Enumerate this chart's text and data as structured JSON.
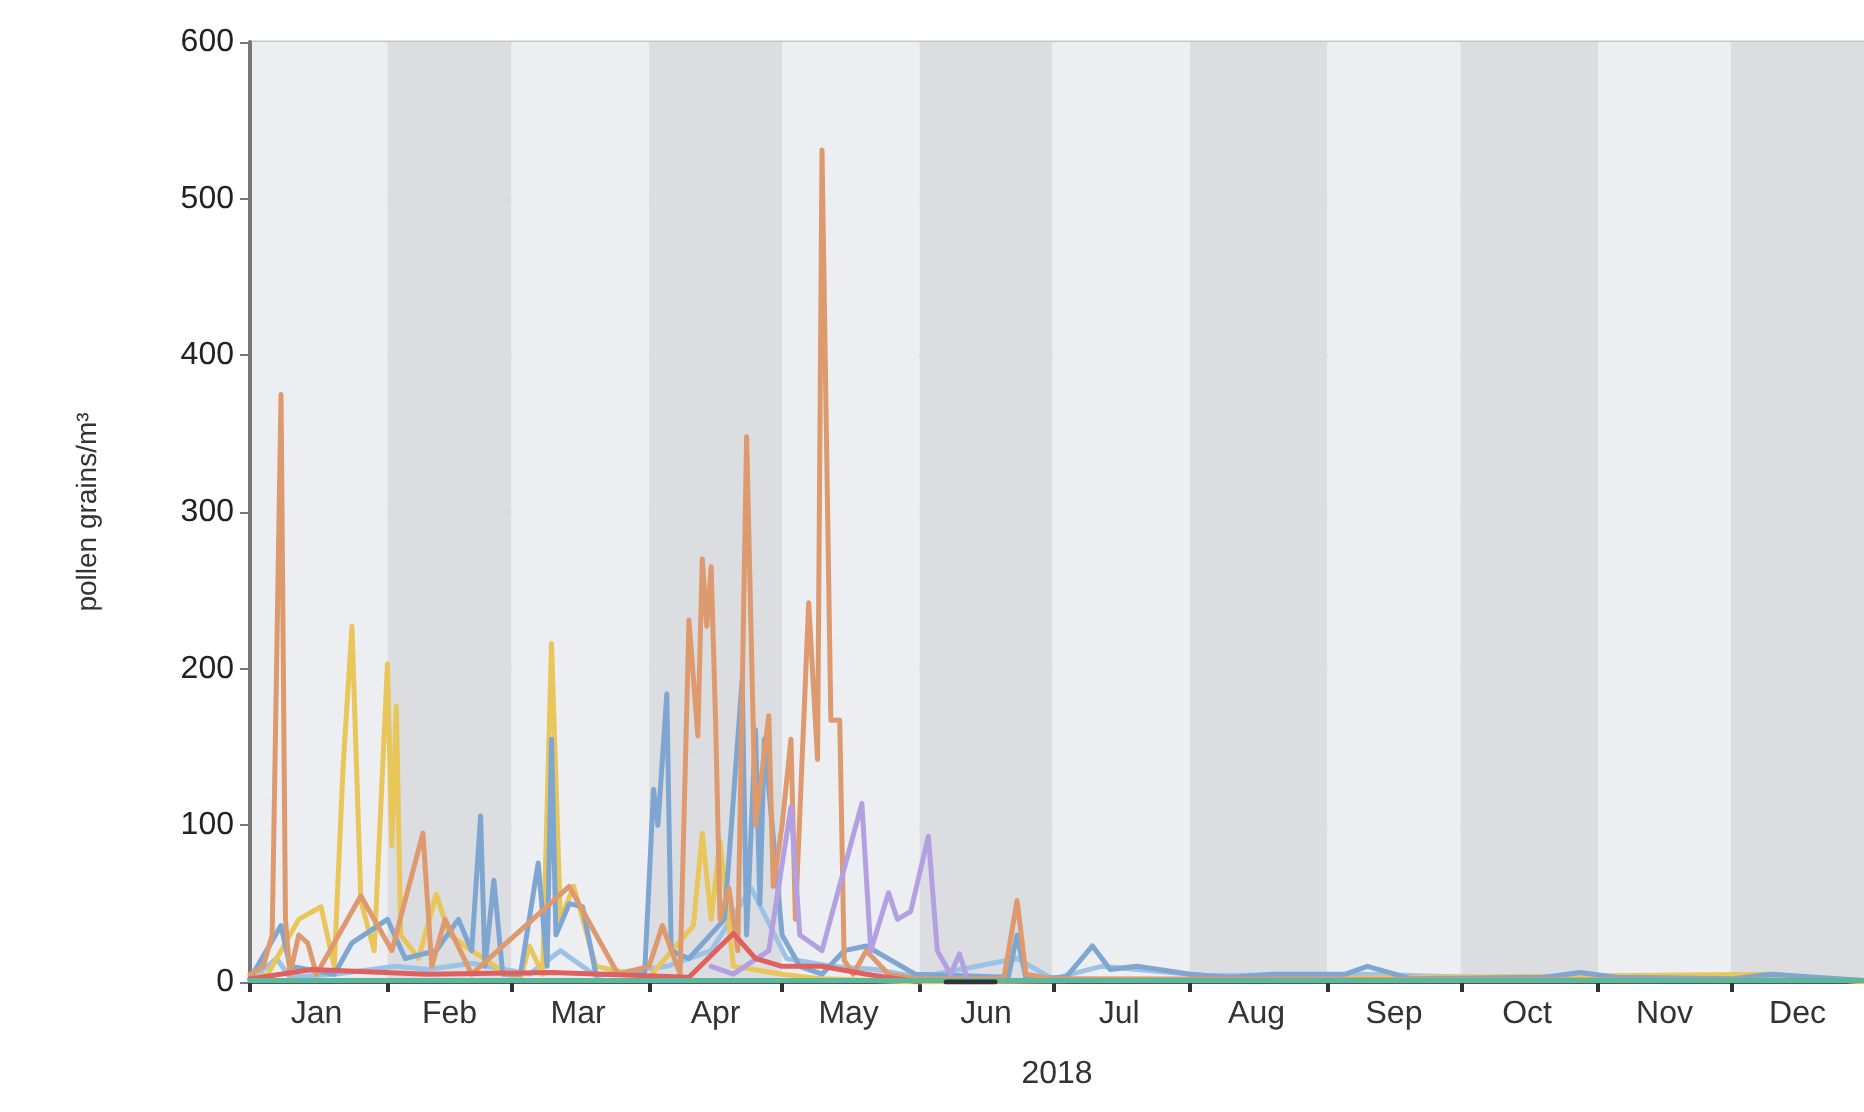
{
  "chart_data": {
    "type": "line",
    "xlabel": "2018",
    "ylabel": "pollen grains/m³",
    "xlim": [
      "2018-01-01",
      "2018-12-31"
    ],
    "ylim": [
      0,
      600
    ],
    "yticks": [
      0,
      100,
      200,
      300,
      400,
      500,
      600
    ],
    "xticks": [
      {
        "value": "2018-01-01",
        "label": null
      },
      {
        "value": "2018-01-16",
        "label": "Jan"
      },
      {
        "value": "2018-02-01",
        "label": null
      },
      {
        "value": "2018-02-15",
        "label": "Feb"
      },
      {
        "value": "2018-03-01",
        "label": null
      },
      {
        "value": "2018-03-16",
        "label": "Mar"
      },
      {
        "value": "2018-04-01",
        "label": null
      },
      {
        "value": "2018-04-16",
        "label": "Apr"
      },
      {
        "value": "2018-05-01",
        "label": null
      },
      {
        "value": "2018-05-16",
        "label": "May"
      },
      {
        "value": "2018-06-01",
        "label": null
      },
      {
        "value": "2018-06-16",
        "label": "Jun"
      },
      {
        "value": "2018-07-01",
        "label": null
      },
      {
        "value": "2018-07-16",
        "label": "Jul"
      },
      {
        "value": "2018-08-01",
        "label": null
      },
      {
        "value": "2018-08-16",
        "label": "Aug"
      },
      {
        "value": "2018-09-01",
        "label": null
      },
      {
        "value": "2018-09-16",
        "label": "Sep"
      },
      {
        "value": "2018-10-01",
        "label": null
      },
      {
        "value": "2018-10-16",
        "label": "Oct"
      },
      {
        "value": "2018-11-01",
        "label": null
      },
      {
        "value": "2018-11-16",
        "label": "Nov"
      },
      {
        "value": "2018-12-01",
        "label": null
      },
      {
        "value": "2018-12-16",
        "label": "Dec"
      }
    ],
    "grid": "y",
    "marker": "none",
    "line_style": "solid",
    "bands": [
      {
        "axis": "x",
        "from": "2018-01-01",
        "to": "2018-02-01",
        "color": "#eceef2"
      },
      {
        "axis": "x",
        "from": "2018-02-01",
        "to": "2018-03-01",
        "color": "#dcdde0"
      },
      {
        "axis": "x",
        "from": "2018-03-01",
        "to": "2018-04-01",
        "color": "#eceef2"
      },
      {
        "axis": "x",
        "from": "2018-04-01",
        "to": "2018-05-01",
        "color": "#dcdde0"
      },
      {
        "axis": "x",
        "from": "2018-05-01",
        "to": "2018-06-01",
        "color": "#eceef2"
      },
      {
        "axis": "x",
        "from": "2018-06-01",
        "to": "2018-07-01",
        "color": "#dcdde0"
      },
      {
        "axis": "x",
        "from": "2018-07-01",
        "to": "2018-08-01",
        "color": "#eceef2"
      },
      {
        "axis": "x",
        "from": "2018-08-01",
        "to": "2018-09-01",
        "color": "#dcdde0"
      },
      {
        "axis": "x",
        "from": "2018-09-01",
        "to": "2018-10-01",
        "color": "#eceef2"
      },
      {
        "axis": "x",
        "from": "2018-10-01",
        "to": "2018-11-01",
        "color": "#dcdde0"
      },
      {
        "axis": "x",
        "from": "2018-11-01",
        "to": "2018-12-01",
        "color": "#eceef2"
      },
      {
        "axis": "x",
        "from": "2018-12-01",
        "to": "2018-12-31",
        "color": "#dcdde0"
      }
    ],
    "series": [
      {
        "color": "#9cc3e5",
        "x": [
          "2018-01-01",
          "2018-01-07",
          "2018-01-10",
          "2018-01-20",
          "2018-02-03",
          "2018-02-10",
          "2018-02-20",
          "2018-03-05",
          "2018-03-12",
          "2018-03-20",
          "2018-04-05",
          "2018-04-15",
          "2018-04-24",
          "2018-05-02",
          "2018-05-12",
          "2018-05-22",
          "2018-06-01",
          "2018-06-23",
          "2018-07-01",
          "2018-07-12",
          "2018-08-05",
          "2018-09-10",
          "2018-10-15",
          "2018-11-10",
          "2018-12-10",
          "2018-12-31"
        ],
        "values": [
          1,
          15,
          3,
          5,
          10,
          8,
          12,
          5,
          20,
          4,
          10,
          20,
          60,
          15,
          10,
          8,
          3,
          15,
          2,
          10,
          4,
          5,
          2,
          3,
          4,
          1
        ]
      },
      {
        "color": "#e8c65a",
        "x": [
          "2018-01-01",
          "2018-01-05",
          "2018-01-12",
          "2018-01-17",
          "2018-01-20",
          "2018-01-22",
          "2018-01-24",
          "2018-01-26",
          "2018-01-29",
          "2018-02-01",
          "2018-02-02",
          "2018-02-03",
          "2018-02-04",
          "2018-02-08",
          "2018-02-12",
          "2018-02-15",
          "2018-02-20",
          "2018-02-28",
          "2018-03-03",
          "2018-03-05",
          "2018-03-08",
          "2018-03-10",
          "2018-03-12",
          "2018-03-15",
          "2018-03-20",
          "2018-04-01",
          "2018-04-11",
          "2018-04-13",
          "2018-04-15",
          "2018-04-17",
          "2018-04-20",
          "2018-05-01",
          "2018-05-10",
          "2018-06-01",
          "2018-12-10",
          "2018-12-31"
        ],
        "values": [
          2,
          5,
          40,
          48,
          10,
          138,
          227,
          52,
          20,
          203,
          87,
          176,
          30,
          15,
          56,
          30,
          20,
          5,
          2,
          23,
          5,
          216,
          40,
          61,
          10,
          3,
          36,
          95,
          40,
          90,
          10,
          5,
          2,
          0,
          5,
          0
        ]
      },
      {
        "color": "#7ea6d1",
        "x": [
          "2018-01-01",
          "2018-01-08",
          "2018-01-10",
          "2018-01-20",
          "2018-01-24",
          "2018-02-01",
          "2018-02-05",
          "2018-02-12",
          "2018-02-17",
          "2018-02-20",
          "2018-02-22",
          "2018-02-23",
          "2018-02-25",
          "2018-02-27",
          "2018-03-03",
          "2018-03-07",
          "2018-03-09",
          "2018-03-10",
          "2018-03-11",
          "2018-03-14",
          "2018-03-17",
          "2018-03-20",
          "2018-03-31",
          "2018-04-02",
          "2018-04-03",
          "2018-04-05",
          "2018-04-06",
          "2018-04-10",
          "2018-04-18",
          "2018-04-22",
          "2018-04-23",
          "2018-04-25",
          "2018-04-26",
          "2018-04-27",
          "2018-05-01",
          "2018-05-05",
          "2018-05-10",
          "2018-05-15",
          "2018-05-20",
          "2018-05-31",
          "2018-06-21",
          "2018-06-23",
          "2018-06-25",
          "2018-07-04",
          "2018-07-10",
          "2018-07-14",
          "2018-07-20",
          "2018-07-25",
          "2018-08-01",
          "2018-08-10",
          "2018-08-20",
          "2018-09-05",
          "2018-09-10",
          "2018-09-20",
          "2018-10-20",
          "2018-10-28",
          "2018-11-05",
          "2018-12-01",
          "2018-12-10",
          "2018-12-31"
        ],
        "values": [
          2,
          36,
          10,
          5,
          25,
          40,
          15,
          20,
          40,
          20,
          106,
          10,
          65,
          5,
          5,
          76,
          10,
          155,
          30,
          50,
          48,
          5,
          5,
          123,
          100,
          184,
          20,
          15,
          40,
          193,
          30,
          161,
          50,
          155,
          30,
          10,
          5,
          20,
          23,
          5,
          3,
          30,
          2,
          3,
          23,
          8,
          10,
          8,
          5,
          3,
          5,
          5,
          10,
          2,
          3,
          6,
          3,
          2,
          5,
          1
        ]
      },
      {
        "color": "#dd9a6e",
        "x": [
          "2018-01-01",
          "2018-01-04",
          "2018-01-06",
          "2018-01-08",
          "2018-01-09",
          "2018-01-10",
          "2018-01-12",
          "2018-01-14",
          "2018-01-16",
          "2018-01-26",
          "2018-02-02",
          "2018-02-09",
          "2018-02-11",
          "2018-02-14",
          "2018-02-20",
          "2018-03-14",
          "2018-03-25",
          "2018-04-01",
          "2018-04-04",
          "2018-04-08",
          "2018-04-10",
          "2018-04-12",
          "2018-04-13",
          "2018-04-14",
          "2018-04-15",
          "2018-04-16",
          "2018-04-17",
          "2018-04-19",
          "2018-04-21",
          "2018-04-23",
          "2018-04-25",
          "2018-04-28",
          "2018-04-29",
          "2018-05-01",
          "2018-05-03",
          "2018-05-04",
          "2018-05-07",
          "2018-05-09",
          "2018-05-10",
          "2018-05-12",
          "2018-05-14",
          "2018-05-15",
          "2018-05-17",
          "2018-05-20",
          "2018-05-25",
          "2018-06-01",
          "2018-06-20",
          "2018-06-23",
          "2018-06-25",
          "2018-07-01",
          "2018-12-31"
        ],
        "values": [
          5,
          10,
          30,
          375,
          40,
          5,
          30,
          25,
          5,
          55,
          20,
          95,
          10,
          40,
          5,
          61,
          5,
          10,
          36,
          5,
          231,
          157,
          270,
          227,
          265,
          167,
          40,
          60,
          20,
          348,
          100,
          170,
          61,
          100,
          155,
          40,
          242,
          142,
          531,
          167,
          167,
          14,
          5,
          20,
          5,
          2,
          2,
          52,
          5,
          2,
          1
        ]
      },
      {
        "color": "#b3a0e0",
        "x": [
          "2018-04-15",
          "2018-04-20",
          "2018-04-28",
          "2018-05-03",
          "2018-05-05",
          "2018-05-10",
          "2018-05-19",
          "2018-05-21",
          "2018-05-25",
          "2018-05-27",
          "2018-05-30",
          "2018-06-03",
          "2018-06-05",
          "2018-06-08",
          "2018-06-10",
          "2018-06-12"
        ],
        "values": [
          10,
          5,
          20,
          112,
          30,
          20,
          114,
          20,
          57,
          40,
          45,
          93,
          20,
          5,
          18,
          0
        ]
      },
      {
        "color": "#e06060",
        "x": [
          "2018-01-01",
          "2018-01-15",
          "2018-02-10",
          "2018-03-10",
          "2018-04-10",
          "2018-04-20",
          "2018-04-25",
          "2018-05-01",
          "2018-05-10",
          "2018-05-20",
          "2018-06-01"
        ],
        "values": [
          2,
          8,
          5,
          6,
          3,
          31,
          15,
          10,
          10,
          5,
          0
        ]
      },
      {
        "color": "#5cb89a",
        "x": [
          "2018-01-01",
          "2018-03-01",
          "2018-06-01",
          "2018-09-01",
          "2018-12-31"
        ],
        "values": [
          1,
          1,
          1,
          1,
          1
        ]
      },
      {
        "color": "#333333",
        "x": [
          "2018-06-07",
          "2018-06-18"
        ],
        "values": [
          0,
          0
        ]
      }
    ]
  }
}
